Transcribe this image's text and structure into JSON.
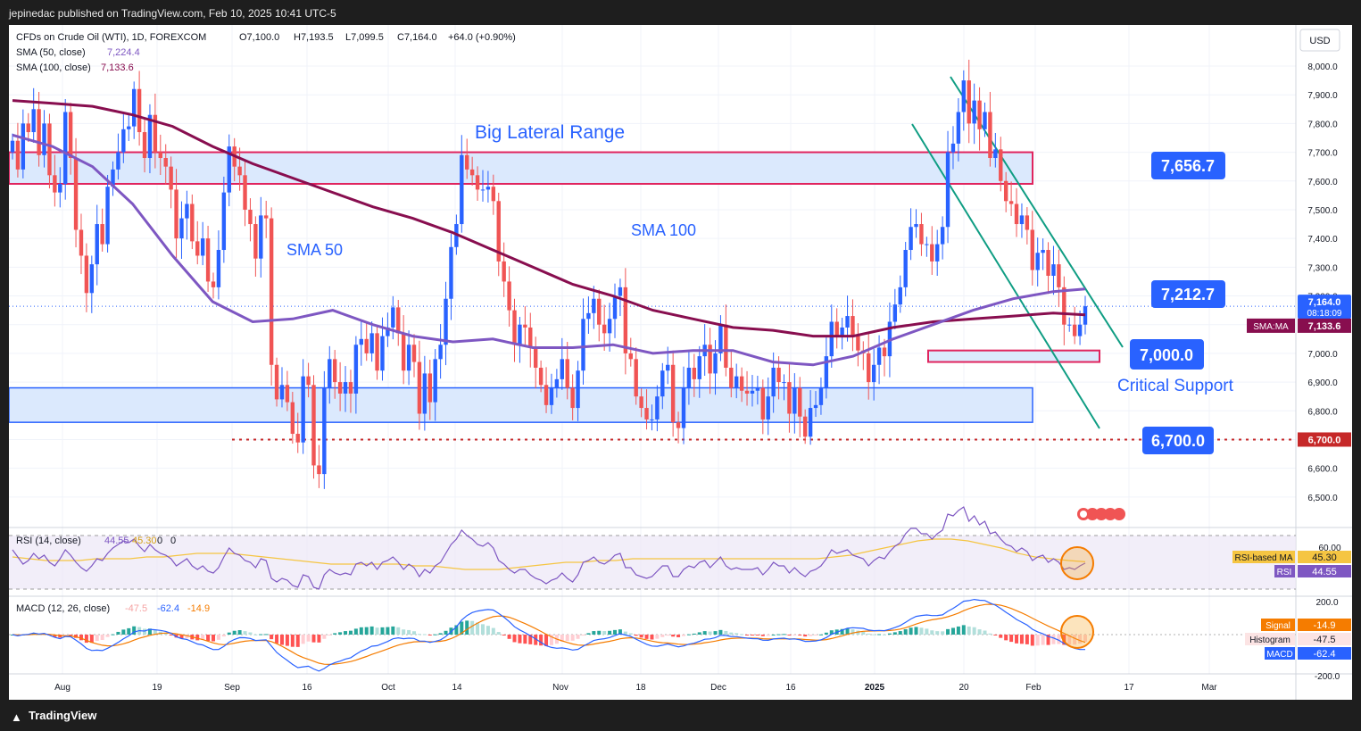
{
  "header": {
    "published": "jepinedac published on TradingView.com, Feb 10, 2025 10:41 UTC-5"
  },
  "footer": {
    "brand": "TradingView",
    "logo_icon": "tradingview-logo-icon"
  },
  "legend": {
    "symbol": "CFDs on Crude Oil (WTI), 1D, FOREXCOM",
    "o": "O7,100.0",
    "h": "H7,193.5",
    "l": "L7,099.5",
    "c": "C7,164.0",
    "chg": "+64.0 (+0.90%)",
    "sma50": "SMA (50, close)",
    "sma50_val": "7,224.4",
    "sma100": "SMA (100, close)",
    "sma100_val": "7,133.6"
  },
  "currency": "USD",
  "annotations": {
    "range_title": "Big Lateral Range",
    "sma50": "SMA 50",
    "sma100": "SMA 100",
    "critical": "Critical Support",
    "labels": [
      "7,656.7",
      "7,212.7",
      "7,000.0",
      "6,700.0"
    ]
  },
  "price_axis": {
    "ticks": [
      "8,000.0",
      "7,900.0",
      "7,800.0",
      "7,700.0",
      "7,600.0",
      "7,500.0",
      "7,400.0",
      "7,300.0",
      "7,200.0",
      "7,100.0",
      "7,000.0",
      "6,900.0",
      "6,800.0",
      "6,700.0",
      "6,600.0",
      "6,500.0"
    ],
    "last_price": "7,164.0",
    "countdown": "08:18:09",
    "sma_ma_tag": "SMA:MA",
    "sma_ma_val": "7,133.6",
    "support_tag": "6,700.0"
  },
  "time_axis": [
    "Aug",
    "19",
    "Sep",
    "16",
    "Oct",
    "14",
    "Nov",
    "18",
    "Dec",
    "16",
    "2025",
    "20",
    "Feb",
    "17",
    "Mar"
  ],
  "rsi": {
    "title": "RSI (14, close)",
    "v1": "44.55",
    "v2": "45.30",
    "v3": "0",
    "v4": "0",
    "axis": "60.00",
    "tag_ma": "RSI-based MA",
    "tag_ma_val": "45.30",
    "tag_rsi": "RSI",
    "tag_rsi_val": "44.55"
  },
  "macd": {
    "title": "MACD (12, 26, close)",
    "v1": "-47.5",
    "v2": "-62.4",
    "v3": "-14.9",
    "axis_top": "200.0",
    "axis_bottom": "-200.0",
    "tag_signal": "Signal",
    "tag_signal_val": "-14.9",
    "tag_hist": "Histogram",
    "tag_hist_val": "-47.5",
    "tag_macd": "MACD",
    "tag_macd_val": "-62.4"
  },
  "colors": {
    "up": "#2962ff",
    "down": "#f05454",
    "sma50": "#7e57c2",
    "sma100": "#880e4f",
    "zone_fill": "#dbe9fd",
    "zone_pink": "#e0245e",
    "zone_blue": "#2962ff",
    "label_bg": "#2962ff",
    "support_line": "#c62828",
    "channel": "#0f9d83",
    "rsi_line": "#7e57c2",
    "rsi_ma": "#f5c542",
    "macd_line": "#2962ff",
    "signal_line": "#f57c00"
  },
  "chart_data": {
    "type": "candlestick",
    "title": "CFDs on Crude Oil (WTI), 1D, FOREXCOM",
    "ylabel": "USD",
    "ylim": [
      6400,
      8050
    ],
    "x_ticks": [
      "Aug",
      "19",
      "Sep",
      "16",
      "Oct",
      "14",
      "Nov",
      "18",
      "Dec",
      "16",
      "2025",
      "20",
      "Feb",
      "17",
      "Mar"
    ],
    "closes": [
      7740,
      7640,
      7800,
      7770,
      7850,
      7690,
      7800,
      7620,
      7560,
      7590,
      7840,
      7680,
      7430,
      7340,
      7210,
      7310,
      7450,
      7380,
      7580,
      7640,
      7700,
      7780,
      7790,
      7920,
      7770,
      7680,
      7830,
      7700,
      7680,
      7650,
      7570,
      7400,
      7470,
      7520,
      7390,
      7340,
      7400,
      7250,
      7230,
      7360,
      7560,
      7720,
      7650,
      7620,
      7500,
      7450,
      7330,
      7480,
      7470,
      6960,
      6840,
      6890,
      6830,
      6720,
      6690,
      6920,
      6890,
      6610,
      6580,
      6880,
      6980,
      6900,
      6860,
      6900,
      6860,
      7030,
      7050,
      7000,
      7070,
      6940,
      7060,
      7090,
      7160,
      7070,
      6940,
      7030,
      6970,
      6790,
      6930,
      6830,
      6980,
      7030,
      7190,
      7370,
      7450,
      7690,
      7640,
      7620,
      7570,
      7570,
      7580,
      7530,
      7320,
      7250,
      7150,
      7030,
      7100,
      7090,
      7020,
      6950,
      6890,
      6820,
      6880,
      6910,
      6980,
      6880,
      6810,
      6940,
      7120,
      7140,
      7190,
      7100,
      7070,
      7120,
      7200,
      7230,
      7000,
      6980,
      6850,
      6810,
      6770,
      6770,
      6850,
      6940,
      6960,
      6760,
      6740,
      6880,
      6950,
      6910,
      6990,
      7030,
      6930,
      7000,
      7100,
      6950,
      6880,
      6920,
      6870,
      6860,
      6870,
      6880,
      6770,
      6850,
      6950,
      6900,
      6900,
      6790,
      6880,
      6780,
      6710,
      6810,
      6820,
      6880,
      6990,
      7110,
      7060,
      7090,
      7130,
      7060,
      7010,
      7000,
      6900,
      6960,
      7020,
      6990,
      7110,
      7170,
      7230,
      7360,
      7440,
      7450,
      7380,
      7380,
      7320,
      7380,
      7440,
      7700,
      7730,
      7840,
      7950,
      7800,
      7880,
      7780,
      7840,
      7680,
      7710,
      7600,
      7530,
      7520,
      7450,
      7480,
      7430,
      7290,
      7350,
      7360,
      7270,
      7310,
      7230,
      7100,
      7100,
      7060,
      7100,
      7164
    ],
    "opens": [
      7700,
      7740,
      7640,
      7800,
      7770,
      7850,
      7690,
      7800,
      7620,
      7560,
      7590,
      7840,
      7680,
      7430,
      7340,
      7210,
      7310,
      7450,
      7380,
      7580,
      7640,
      7700,
      7780,
      7790,
      7920,
      7770,
      7680,
      7830,
      7700,
      7680,
      7650,
      7570,
      7400,
      7470,
      7520,
      7390,
      7340,
      7400,
      7250,
      7230,
      7360,
      7560,
      7720,
      7650,
      7620,
      7500,
      7450,
      7330,
      7480,
      7470,
      6960,
      6840,
      6890,
      6830,
      6720,
      6690,
      6920,
      6890,
      6610,
      6580,
      6880,
      6980,
      6900,
      6860,
      6900,
      6860,
      7030,
      7050,
      7000,
      7070,
      6940,
      7060,
      7090,
      7160,
      7070,
      6940,
      7030,
      6970,
      6790,
      6930,
      6830,
      6980,
      7030,
      7190,
      7370,
      7450,
      7690,
      7640,
      7620,
      7570,
      7570,
      7580,
      7530,
      7320,
      7250,
      7150,
      7030,
      7100,
      7090,
      7020,
      6950,
      6890,
      6820,
      6880,
      6910,
      6980,
      6880,
      6810,
      6940,
      7120,
      7140,
      7190,
      7100,
      7070,
      7120,
      7200,
      7230,
      7000,
      6980,
      6850,
      6810,
      6770,
      6770,
      6850,
      6940,
      6960,
      6760,
      6740,
      6880,
      6950,
      6910,
      6990,
      7030,
      6930,
      7000,
      7100,
      6950,
      6880,
      6920,
      6870,
      6860,
      6870,
      6880,
      6770,
      6850,
      6950,
      6900,
      6900,
      6790,
      6880,
      6780,
      6710,
      6810,
      6820,
      6880,
      6990,
      7110,
      7060,
      7090,
      7130,
      7060,
      7010,
      7000,
      6900,
      6960,
      7020,
      6990,
      7110,
      7170,
      7230,
      7360,
      7440,
      7450,
      7380,
      7380,
      7320,
      7380,
      7440,
      7700,
      7730,
      7840,
      7950,
      7800,
      7880,
      7780,
      7840,
      7680,
      7710,
      7600,
      7530,
      7520,
      7450,
      7480,
      7430,
      7290,
      7350,
      7360,
      7270,
      7310,
      7230,
      7100,
      7100,
      7060,
      7100
    ],
    "sma50": [
      [
        0,
        7760
      ],
      [
        20,
        7720
      ],
      [
        40,
        7650
      ],
      [
        60,
        7520
      ],
      [
        80,
        7340
      ],
      [
        100,
        7180
      ],
      [
        120,
        7110
      ],
      [
        140,
        7120
      ],
      [
        160,
        7150
      ],
      [
        180,
        7100
      ],
      [
        200,
        7060
      ],
      [
        220,
        7040
      ],
      [
        240,
        7050
      ],
      [
        260,
        7020
      ],
      [
        280,
        7020
      ],
      [
        300,
        7030
      ],
      [
        320,
        7000
      ],
      [
        340,
        7010
      ],
      [
        360,
        7010
      ],
      [
        380,
        6970
      ],
      [
        400,
        6960
      ],
      [
        420,
        6990
      ],
      [
        440,
        7050
      ],
      [
        460,
        7100
      ],
      [
        480,
        7150
      ],
      [
        500,
        7190
      ],
      [
        520,
        7215
      ],
      [
        536,
        7224
      ]
    ],
    "sma100": [
      [
        0,
        7880
      ],
      [
        20,
        7870
      ],
      [
        40,
        7860
      ],
      [
        60,
        7830
      ],
      [
        80,
        7790
      ],
      [
        100,
        7720
      ],
      [
        120,
        7660
      ],
      [
        140,
        7610
      ],
      [
        160,
        7560
      ],
      [
        180,
        7510
      ],
      [
        200,
        7470
      ],
      [
        220,
        7420
      ],
      [
        240,
        7360
      ],
      [
        260,
        7300
      ],
      [
        280,
        7240
      ],
      [
        300,
        7200
      ],
      [
        320,
        7150
      ],
      [
        340,
        7120
      ],
      [
        360,
        7090
      ],
      [
        380,
        7080
      ],
      [
        400,
        7060
      ],
      [
        420,
        7060
      ],
      [
        440,
        7090
      ],
      [
        460,
        7110
      ],
      [
        480,
        7120
      ],
      [
        500,
        7130
      ],
      [
        520,
        7140
      ],
      [
        536,
        7134
      ]
    ],
    "zones": [
      {
        "name": "big-lateral-range-top",
        "from": 7590,
        "to": 7700
      },
      {
        "name": "big-lateral-range-bottom",
        "from": 6760,
        "to": 6880
      },
      {
        "name": "critical-support",
        "from": 6970,
        "to": 7010
      }
    ],
    "levels": [
      7656.7,
      7212.7,
      7000.0,
      6700.0
    ],
    "rsi": [
      52,
      48,
      44,
      46,
      50,
      47,
      49,
      45,
      43,
      47,
      52,
      49,
      45,
      42,
      40,
      43,
      47,
      46,
      50,
      53,
      55,
      57,
      56,
      58,
      54,
      51,
      55,
      52,
      50,
      49,
      47,
      43,
      45,
      47,
      43,
      41,
      43,
      40,
      39,
      42,
      48,
      53,
      50,
      49,
      46,
      45,
      42,
      47,
      46,
      36,
      34,
      36,
      35,
      32,
      31,
      38,
      37,
      31,
      30,
      38,
      41,
      39,
      38,
      39,
      38,
      44,
      45,
      43,
      45,
      41,
      45,
      46,
      48,
      45,
      41,
      44,
      42,
      37,
      41,
      39,
      43,
      45,
      50,
      55,
      58,
      63,
      60,
      58,
      55,
      54,
      56,
      53,
      46,
      44,
      41,
      39,
      41,
      41,
      38,
      36,
      35,
      33,
      35,
      36,
      39,
      36,
      34,
      38,
      45,
      46,
      48,
      45,
      44,
      46,
      49,
      50,
      42,
      42,
      38,
      37,
      36,
      37,
      40,
      43,
      43,
      37,
      37,
      41,
      43,
      42,
      45,
      46,
      42,
      45,
      48,
      43,
      41,
      42,
      41,
      41,
      41,
      42,
      38,
      41,
      45,
      43,
      43,
      39,
      42,
      39,
      37,
      40,
      41,
      43,
      47,
      52,
      50,
      51,
      52,
      49,
      48,
      47,
      43,
      46,
      48,
      47,
      51,
      54,
      56,
      61,
      64,
      64,
      61,
      61,
      58,
      61,
      63,
      72,
      71,
      74,
      76,
      68,
      71,
      66,
      68,
      61,
      62,
      58,
      55,
      54,
      51,
      53,
      51,
      46,
      48,
      49,
      45,
      47,
      45,
      41,
      42,
      41,
      43,
      44.55
    ],
    "rsi_ma": [
      48,
      47,
      46,
      46,
      46,
      47,
      47,
      47,
      48,
      48,
      49,
      50,
      50,
      50,
      49,
      48,
      47,
      46,
      45,
      44,
      44,
      44,
      44,
      44,
      43,
      43,
      42,
      41,
      41,
      41,
      42,
      43,
      44,
      45,
      45,
      46,
      46,
      47,
      47,
      47,
      47,
      47,
      47,
      47,
      47,
      47,
      47,
      47,
      47,
      48,
      49,
      51,
      53,
      55,
      57,
      58,
      58,
      57,
      55,
      53,
      50,
      48,
      47,
      46,
      45.3
    ]
  }
}
